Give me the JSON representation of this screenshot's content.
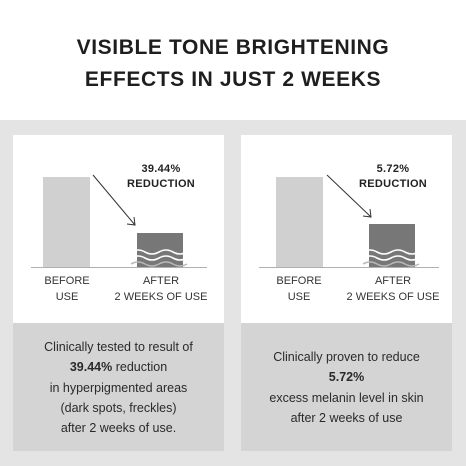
{
  "title": {
    "line1": "VISIBLE TONE BRIGHTENING",
    "line2": "EFFECTS IN JUST 2 WEEKS"
  },
  "left_panel": {
    "reduction_value": "39.44%",
    "reduction_word": "REDUCTION",
    "before_line1": "BEFORE",
    "before_line2": "USE",
    "after_line1": "AFTER",
    "after_line2": "2 WEEKS OF USE",
    "desc_line1": "Clinically tested to result of",
    "desc_bold": "39.44%",
    "desc_line2_rest": " reduction",
    "desc_line3": "in hyperpigmented areas",
    "desc_line4": "(dark spots, freckles)",
    "desc_line5": "after 2 weeks of use."
  },
  "right_panel": {
    "reduction_value": "5.72%",
    "reduction_word": "REDUCTION",
    "before_line1": "BEFORE",
    "before_line2": "USE",
    "after_line1": "AFTER",
    "after_line2": "2 WEEKS OF USE",
    "desc_line1": "Clinically proven to reduce",
    "desc_bold": "5.72%",
    "desc_line3": "excess melanin level in skin",
    "desc_line4": "after 2 weeks of use"
  },
  "colors": {
    "bar_before": "#d0d0d0",
    "bar_after": "#777777",
    "background": "#e4e4e5",
    "desc_background": "#d4d4d5"
  },
  "icons": {
    "arrow": "diagonal-arrow-icon",
    "waves": "wavy-lines-icon"
  }
}
